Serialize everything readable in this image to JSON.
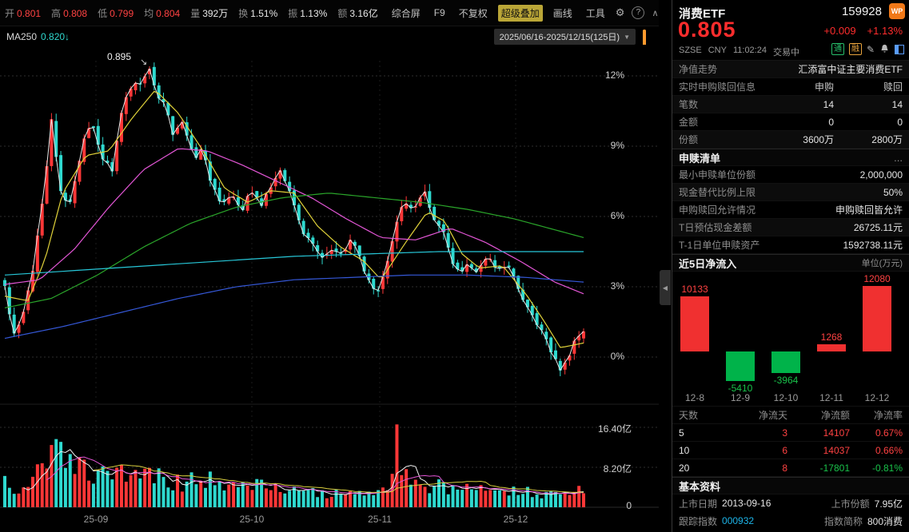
{
  "topbar": {
    "stats": [
      {
        "label": "开",
        "value": "0.801"
      },
      {
        "label": "高",
        "value": "0.808"
      },
      {
        "label": "低",
        "value": "0.799"
      },
      {
        "label": "均",
        "value": "0.804"
      },
      {
        "label": "量",
        "value": "392万"
      },
      {
        "label": "换",
        "value": "1.51%"
      },
      {
        "label": "振",
        "value": "1.13%"
      },
      {
        "label": "额",
        "value": "3.16亿"
      }
    ],
    "buttons": [
      "综合屏",
      "F9",
      "不复权",
      "超级叠加",
      "画线",
      "工具"
    ]
  },
  "icons": {
    "caret": "▼",
    "gear": "⚙",
    "help": "?",
    "chevron": "∧",
    "pencil": "✎",
    "arrow": "↘",
    "collapse": "◀",
    "wp": "WP"
  },
  "chart": {
    "ma_label": "MA250",
    "ma_value": "0.820↓",
    "date_range": "2025/06/16-2025/12/15(125日)",
    "annotation": "0.895",
    "y_labels": [
      "12%",
      "9%",
      "6%",
      "3%",
      "0%"
    ],
    "vol_labels": [
      "16.40亿",
      "8.20亿",
      "0"
    ],
    "x_labels": [
      "25-09",
      "25-10",
      "25-11",
      "25-12"
    ],
    "kline": {
      "type": "candlestick",
      "candle_count": 125,
      "colors": {
        "up": "#fd3737",
        "down": "#2ed9cf"
      },
      "close_anchors": [
        [
          0,
          3.0
        ],
        [
          0.015,
          0.9
        ],
        [
          0.03,
          1.8
        ],
        [
          0.05,
          4.0
        ],
        [
          0.07,
          7.4
        ],
        [
          0.082,
          10.5
        ],
        [
          0.094,
          7.2
        ],
        [
          0.112,
          6.5
        ],
        [
          0.133,
          8.9
        ],
        [
          0.149,
          10.1
        ],
        [
          0.167,
          8.6
        ],
        [
          0.185,
          7.9
        ],
        [
          0.202,
          10.6
        ],
        [
          0.22,
          11.5
        ],
        [
          0.236,
          11.8
        ],
        [
          0.25,
          12.2
        ],
        [
          0.264,
          11.1
        ],
        [
          0.278,
          10.6
        ],
        [
          0.291,
          9.4
        ],
        [
          0.309,
          10.1
        ],
        [
          0.326,
          8.4
        ],
        [
          0.343,
          8.9
        ],
        [
          0.356,
          7.4
        ],
        [
          0.374,
          6.4
        ],
        [
          0.392,
          6.9
        ],
        [
          0.409,
          6.2
        ],
        [
          0.425,
          7.1
        ],
        [
          0.443,
          6.5
        ],
        [
          0.461,
          7.4
        ],
        [
          0.478,
          7.9
        ],
        [
          0.494,
          6.9
        ],
        [
          0.512,
          5.5
        ],
        [
          0.53,
          4.8
        ],
        [
          0.547,
          4.3
        ],
        [
          0.563,
          4.7
        ],
        [
          0.581,
          4.5
        ],
        [
          0.599,
          5.0
        ],
        [
          0.616,
          4.0
        ],
        [
          0.632,
          3.1
        ],
        [
          0.643,
          2.7
        ],
        [
          0.657,
          3.5
        ],
        [
          0.674,
          5.4
        ],
        [
          0.689,
          6.7
        ],
        [
          0.705,
          6.2
        ],
        [
          0.723,
          7.1
        ],
        [
          0.74,
          6.0
        ],
        [
          0.757,
          5.4
        ],
        [
          0.771,
          4.3
        ],
        [
          0.784,
          3.5
        ],
        [
          0.798,
          4.0
        ],
        [
          0.816,
          3.6
        ],
        [
          0.834,
          4.2
        ],
        [
          0.851,
          3.8
        ],
        [
          0.867,
          4.0
        ],
        [
          0.885,
          3.0
        ],
        [
          0.903,
          2.1
        ],
        [
          0.92,
          1.4
        ],
        [
          0.936,
          0.6
        ],
        [
          0.95,
          -0.1
        ],
        [
          0.961,
          -0.6
        ],
        [
          0.972,
          -0.1
        ],
        [
          0.983,
          0.6
        ],
        [
          1,
          1.1
        ]
      ],
      "overlays": [
        {
          "name": "ma-yellow",
          "color": "#e0d23a",
          "anchors": [
            [
              0,
              2.6
            ],
            [
              0.04,
              2.4
            ],
            [
              0.07,
              4.2
            ],
            [
              0.1,
              7.0
            ],
            [
              0.14,
              8.6
            ],
            [
              0.18,
              8.8
            ],
            [
              0.22,
              10.2
            ],
            [
              0.26,
              11.4
            ],
            [
              0.3,
              10.4
            ],
            [
              0.34,
              8.9
            ],
            [
              0.38,
              7.2
            ],
            [
              0.42,
              6.6
            ],
            [
              0.46,
              7.1
            ],
            [
              0.5,
              7.0
            ],
            [
              0.54,
              5.6
            ],
            [
              0.58,
              4.7
            ],
            [
              0.62,
              4.1
            ],
            [
              0.65,
              3.3
            ],
            [
              0.69,
              4.8
            ],
            [
              0.73,
              6.2
            ],
            [
              0.76,
              5.8
            ],
            [
              0.79,
              4.4
            ],
            [
              0.82,
              3.8
            ],
            [
              0.86,
              3.9
            ],
            [
              0.9,
              2.7
            ],
            [
              0.93,
              1.6
            ],
            [
              0.96,
              0.4
            ],
            [
              1,
              0.6
            ]
          ]
        },
        {
          "name": "ma-magenta",
          "color": "#e356d6",
          "anchors": [
            [
              0,
              3.1
            ],
            [
              0.06,
              3.3
            ],
            [
              0.12,
              4.6
            ],
            [
              0.18,
              6.4
            ],
            [
              0.24,
              8.0
            ],
            [
              0.3,
              8.9
            ],
            [
              0.35,
              8.8
            ],
            [
              0.41,
              8.2
            ],
            [
              0.47,
              7.5
            ],
            [
              0.53,
              6.8
            ],
            [
              0.59,
              5.9
            ],
            [
              0.65,
              5.1
            ],
            [
              0.71,
              5.0
            ],
            [
              0.77,
              5.5
            ],
            [
              0.83,
              4.9
            ],
            [
              0.89,
              4.1
            ],
            [
              0.95,
              3.2
            ],
            [
              1,
              2.7
            ]
          ]
        },
        {
          "name": "ma-green",
          "color": "#2aa52a",
          "anchors": [
            [
              0,
              2.1
            ],
            [
              0.08,
              2.5
            ],
            [
              0.16,
              3.5
            ],
            [
              0.24,
              4.7
            ],
            [
              0.32,
              5.7
            ],
            [
              0.4,
              6.4
            ],
            [
              0.48,
              6.8
            ],
            [
              0.56,
              7.0
            ],
            [
              0.64,
              6.8
            ],
            [
              0.72,
              6.6
            ],
            [
              0.8,
              6.3
            ],
            [
              0.88,
              5.9
            ],
            [
              1,
              5.1
            ]
          ]
        },
        {
          "name": "ma-blue",
          "color": "#3558d8",
          "anchors": [
            [
              0,
              0.8
            ],
            [
              0.1,
              1.3
            ],
            [
              0.2,
              1.9
            ],
            [
              0.3,
              2.5
            ],
            [
              0.4,
              3.0
            ],
            [
              0.5,
              3.3
            ],
            [
              0.6,
              3.4
            ],
            [
              0.7,
              3.5
            ],
            [
              0.8,
              3.5
            ],
            [
              0.9,
              3.4
            ],
            [
              1,
              3.2
            ]
          ]
        },
        {
          "name": "ma250-cyan",
          "color": "#27c7d8",
          "anchors": [
            [
              0,
              3.5
            ],
            [
              0.25,
              3.9
            ],
            [
              0.5,
              4.3
            ],
            [
              0.75,
              4.5
            ],
            [
              1,
              4.5
            ]
          ]
        }
      ],
      "vol_anchors": [
        [
          0,
          5.5
        ],
        [
          0.03,
          3.5
        ],
        [
          0.06,
          7.5
        ],
        [
          0.085,
          10.5
        ],
        [
          0.12,
          8
        ],
        [
          0.16,
          6
        ],
        [
          0.2,
          6.5
        ],
        [
          0.25,
          7
        ],
        [
          0.3,
          5
        ],
        [
          0.35,
          5.5
        ],
        [
          0.4,
          4.5
        ],
        [
          0.45,
          4
        ],
        [
          0.5,
          3.2
        ],
        [
          0.55,
          2.8
        ],
        [
          0.6,
          2.6
        ],
        [
          0.64,
          3.4
        ],
        [
          0.66,
          5
        ],
        [
          0.68,
          7
        ],
        [
          0.7,
          5.5
        ],
        [
          0.73,
          4.5
        ],
        [
          0.77,
          4
        ],
        [
          0.81,
          3.4
        ],
        [
          0.86,
          3
        ],
        [
          0.9,
          3.6
        ],
        [
          0.95,
          2.6
        ],
        [
          1,
          3.8
        ]
      ],
      "vol_spike_index": 84,
      "vol_spike_value": 17
    }
  },
  "quote": {
    "name": "消费ETF",
    "code": "159928",
    "price": "0.805",
    "change": "+0.009",
    "change_pct": "+1.13%",
    "exchange": "SZSE",
    "currency": "CNY",
    "time": "11:02:24",
    "status": "交易中",
    "tags": [
      "通",
      "融"
    ]
  },
  "nav_row": {
    "label": "净值走势",
    "value": "汇添富中证主要消费ETF"
  },
  "realtime": {
    "title": "实时申购赎回信息",
    "col1": "申购",
    "col2": "赎回",
    "rows": [
      {
        "label": "笔数",
        "buy": "14",
        "sell": "14"
      },
      {
        "label": "金额",
        "buy": "0",
        "sell": "0"
      },
      {
        "label": "份额",
        "buy": "3600万",
        "sell": "2800万"
      }
    ]
  },
  "shenshu": {
    "title": "申赎清单",
    "more": "...",
    "rows": [
      {
        "label": "最小申赎单位份额",
        "value": "2,000,000"
      },
      {
        "label": "现金替代比例上限",
        "value": "50%"
      },
      {
        "label": "申购赎回允许情况",
        "value": "申购赎回皆允许"
      },
      {
        "label": "T日预估现金差额",
        "value": "26725.11元"
      },
      {
        "label": "T-1日单位申赎资产",
        "value": "1592738.11元"
      }
    ]
  },
  "netflow": {
    "title": "近5日净流入",
    "unit": "单位(万元)",
    "chart_data": {
      "type": "bar",
      "categories": [
        "12-8",
        "12-9",
        "12-10",
        "12-11",
        "12-12"
      ],
      "values": [
        10133,
        -5410,
        -3964,
        1268,
        12080
      ]
    },
    "table": {
      "headers": [
        "天数",
        "净流天",
        "净流额",
        "净流率"
      ],
      "rows": [
        [
          "5",
          "3",
          "14107",
          "0.67%"
        ],
        [
          "10",
          "6",
          "14037",
          "0.66%"
        ],
        [
          "20",
          "8",
          "-17801",
          "-0.81%"
        ]
      ]
    }
  },
  "basic": {
    "title": "基本资料",
    "rows": [
      {
        "label1": "上市日期",
        "value1": "2013-09-16",
        "label2": "上市份额",
        "value2": "7.95亿"
      },
      {
        "label1": "跟踪指数",
        "value1": "000932",
        "label2": "指数简称",
        "value2": "800消费"
      }
    ]
  }
}
